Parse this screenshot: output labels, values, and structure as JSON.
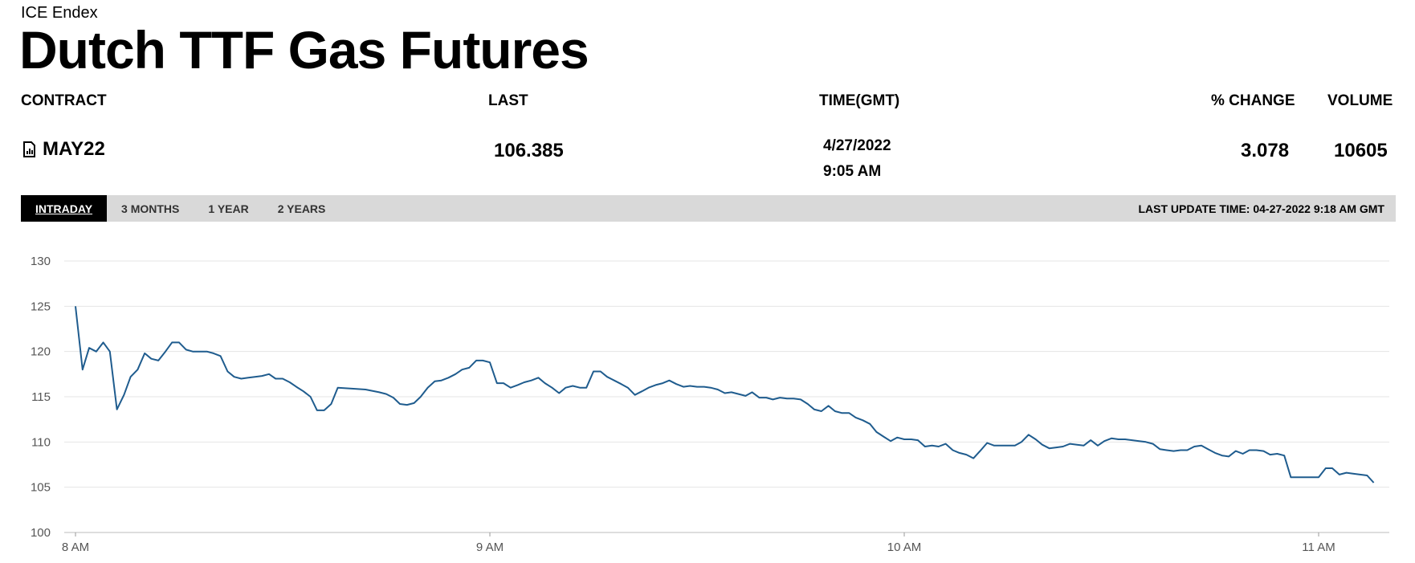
{
  "header": {
    "exchange": "ICE Endex",
    "title": "Dutch TTF Gas Futures"
  },
  "table": {
    "columns": {
      "contract": "CONTRACT",
      "last": "LAST",
      "time": "TIME(GMT)",
      "change": "% CHANGE",
      "volume": "VOLUME"
    },
    "row": {
      "contract": "MAY22",
      "contract_icon": "report-document-icon",
      "last": "106.385",
      "date": "4/27/2022",
      "time": "9:05 AM",
      "change": "3.078",
      "volume": "10605"
    }
  },
  "tabs": [
    {
      "label": "INTRADAY",
      "active": true
    },
    {
      "label": "3 MONTHS",
      "active": false
    },
    {
      "label": "1 YEAR",
      "active": false
    },
    {
      "label": "2 YEARS",
      "active": false
    }
  ],
  "last_update": "LAST UPDATE TIME: 04-27-2022 9:18 AM GMT",
  "colors": {
    "line": "#1f5c8e",
    "tabbar": "#d9d9d9",
    "active_tab": "#000000"
  },
  "chart_data": {
    "type": "line",
    "title": "",
    "xlabel": "",
    "ylabel": "",
    "ylim": [
      100,
      130
    ],
    "yticks": [
      100,
      105,
      110,
      115,
      120,
      125,
      130
    ],
    "xlim_hours": [
      8.0,
      11.17
    ],
    "xticks": [
      {
        "label": "8 AM",
        "hour": 8
      },
      {
        "label": "9 AM",
        "hour": 9
      },
      {
        "label": "10 AM",
        "hour": 10
      },
      {
        "label": "11 AM",
        "hour": 11
      }
    ],
    "grid": true,
    "series": [
      {
        "name": "",
        "points": [
          [
            8.0,
            125.0
          ],
          [
            8.017,
            118.0
          ],
          [
            8.033,
            120.4
          ],
          [
            8.05,
            120.0
          ],
          [
            8.067,
            121.0
          ],
          [
            8.083,
            120.0
          ],
          [
            8.1,
            113.6
          ],
          [
            8.117,
            115.2
          ],
          [
            8.133,
            117.2
          ],
          [
            8.15,
            118.0
          ],
          [
            8.167,
            119.8
          ],
          [
            8.183,
            119.2
          ],
          [
            8.2,
            119.0
          ],
          [
            8.217,
            120.0
          ],
          [
            8.233,
            121.0
          ],
          [
            8.25,
            121.0
          ],
          [
            8.267,
            120.2
          ],
          [
            8.283,
            120.0
          ],
          [
            8.3,
            120.0
          ],
          [
            8.317,
            120.0
          ],
          [
            8.333,
            119.8
          ],
          [
            8.35,
            119.5
          ],
          [
            8.367,
            117.8
          ],
          [
            8.383,
            117.2
          ],
          [
            8.4,
            117.0
          ],
          [
            8.417,
            117.1
          ],
          [
            8.433,
            117.2
          ],
          [
            8.45,
            117.3
          ],
          [
            8.467,
            117.5
          ],
          [
            8.483,
            117.0
          ],
          [
            8.5,
            117.0
          ],
          [
            8.517,
            116.6
          ],
          [
            8.533,
            116.1
          ],
          [
            8.55,
            115.6
          ],
          [
            8.567,
            115.0
          ],
          [
            8.583,
            113.5
          ],
          [
            8.6,
            113.5
          ],
          [
            8.617,
            114.2
          ],
          [
            8.633,
            116.0
          ],
          [
            8.667,
            115.9
          ],
          [
            8.7,
            115.8
          ],
          [
            8.733,
            115.5
          ],
          [
            8.75,
            115.3
          ],
          [
            8.767,
            114.9
          ],
          [
            8.783,
            114.2
          ],
          [
            8.8,
            114.1
          ],
          [
            8.817,
            114.3
          ],
          [
            8.833,
            115.0
          ],
          [
            8.85,
            116.0
          ],
          [
            8.867,
            116.7
          ],
          [
            8.883,
            116.8
          ],
          [
            8.9,
            117.1
          ],
          [
            8.917,
            117.5
          ],
          [
            8.933,
            118.0
          ],
          [
            8.95,
            118.2
          ],
          [
            8.967,
            119.0
          ],
          [
            8.983,
            119.0
          ],
          [
            9.0,
            118.8
          ],
          [
            9.017,
            116.5
          ],
          [
            9.033,
            116.5
          ],
          [
            9.05,
            116.0
          ],
          [
            9.067,
            116.3
          ],
          [
            9.083,
            116.6
          ],
          [
            9.1,
            116.8
          ],
          [
            9.117,
            117.1
          ],
          [
            9.133,
            116.5
          ],
          [
            9.15,
            116.0
          ],
          [
            9.167,
            115.4
          ],
          [
            9.183,
            116.0
          ],
          [
            9.2,
            116.2
          ],
          [
            9.217,
            116.0
          ],
          [
            9.233,
            116.0
          ],
          [
            9.25,
            117.8
          ],
          [
            9.267,
            117.8
          ],
          [
            9.283,
            117.2
          ],
          [
            9.3,
            116.8
          ],
          [
            9.317,
            116.4
          ],
          [
            9.333,
            116.0
          ],
          [
            9.35,
            115.2
          ],
          [
            9.367,
            115.6
          ],
          [
            9.383,
            116.0
          ],
          [
            9.4,
            116.3
          ],
          [
            9.417,
            116.5
          ],
          [
            9.433,
            116.8
          ],
          [
            9.45,
            116.4
          ],
          [
            9.467,
            116.1
          ],
          [
            9.483,
            116.2
          ],
          [
            9.5,
            116.1
          ],
          [
            9.517,
            116.1
          ],
          [
            9.533,
            116.0
          ],
          [
            9.55,
            115.8
          ],
          [
            9.567,
            115.4
          ],
          [
            9.583,
            115.5
          ],
          [
            9.6,
            115.3
          ],
          [
            9.617,
            115.1
          ],
          [
            9.633,
            115.5
          ],
          [
            9.65,
            114.9
          ],
          [
            9.667,
            114.9
          ],
          [
            9.683,
            114.7
          ],
          [
            9.7,
            114.9
          ],
          [
            9.717,
            114.8
          ],
          [
            9.733,
            114.8
          ],
          [
            9.75,
            114.7
          ],
          [
            9.767,
            114.2
          ],
          [
            9.783,
            113.6
          ],
          [
            9.8,
            113.4
          ],
          [
            9.817,
            114.0
          ],
          [
            9.833,
            113.4
          ],
          [
            9.85,
            113.2
          ],
          [
            9.867,
            113.2
          ],
          [
            9.883,
            112.7
          ],
          [
            9.9,
            112.4
          ],
          [
            9.917,
            112.0
          ],
          [
            9.933,
            111.1
          ],
          [
            9.95,
            110.6
          ],
          [
            9.967,
            110.1
          ],
          [
            9.983,
            110.5
          ],
          [
            10.0,
            110.3
          ],
          [
            10.017,
            110.3
          ],
          [
            10.033,
            110.2
          ],
          [
            10.05,
            109.5
          ],
          [
            10.067,
            109.6
          ],
          [
            10.083,
            109.5
          ],
          [
            10.1,
            109.8
          ],
          [
            10.117,
            109.1
          ],
          [
            10.133,
            108.8
          ],
          [
            10.15,
            108.6
          ],
          [
            10.167,
            108.2
          ],
          [
            10.183,
            109.0
          ],
          [
            10.2,
            109.9
          ],
          [
            10.217,
            109.6
          ],
          [
            10.233,
            109.6
          ],
          [
            10.25,
            109.6
          ],
          [
            10.267,
            109.6
          ],
          [
            10.283,
            110.0
          ],
          [
            10.3,
            110.8
          ],
          [
            10.317,
            110.3
          ],
          [
            10.333,
            109.7
          ],
          [
            10.35,
            109.3
          ],
          [
            10.367,
            109.4
          ],
          [
            10.383,
            109.5
          ],
          [
            10.4,
            109.8
          ],
          [
            10.417,
            109.7
          ],
          [
            10.433,
            109.6
          ],
          [
            10.45,
            110.2
          ],
          [
            10.467,
            109.6
          ],
          [
            10.483,
            110.1
          ],
          [
            10.5,
            110.4
          ],
          [
            10.517,
            110.3
          ],
          [
            10.533,
            110.3
          ],
          [
            10.55,
            110.2
          ],
          [
            10.567,
            110.1
          ],
          [
            10.583,
            110.0
          ],
          [
            10.6,
            109.8
          ],
          [
            10.617,
            109.2
          ],
          [
            10.633,
            109.1
          ],
          [
            10.65,
            109.0
          ],
          [
            10.667,
            109.1
          ],
          [
            10.683,
            109.1
          ],
          [
            10.7,
            109.5
          ],
          [
            10.717,
            109.6
          ],
          [
            10.733,
            109.2
          ],
          [
            10.75,
            108.8
          ],
          [
            10.767,
            108.5
          ],
          [
            10.783,
            108.4
          ],
          [
            10.8,
            109.0
          ],
          [
            10.817,
            108.7
          ],
          [
            10.833,
            109.1
          ],
          [
            10.85,
            109.1
          ],
          [
            10.867,
            109.0
          ],
          [
            10.883,
            108.6
          ],
          [
            10.9,
            108.7
          ],
          [
            10.917,
            108.5
          ],
          [
            10.933,
            106.1
          ],
          [
            10.95,
            106.1
          ],
          [
            10.967,
            106.1
          ],
          [
            10.983,
            106.1
          ],
          [
            11.0,
            106.1
          ],
          [
            11.017,
            107.1
          ],
          [
            11.033,
            107.1
          ],
          [
            11.05,
            106.4
          ],
          [
            11.067,
            106.6
          ],
          [
            11.083,
            106.5
          ],
          [
            11.1,
            106.4
          ],
          [
            11.117,
            106.3
          ],
          [
            11.133,
            105.5
          ]
        ]
      }
    ]
  }
}
